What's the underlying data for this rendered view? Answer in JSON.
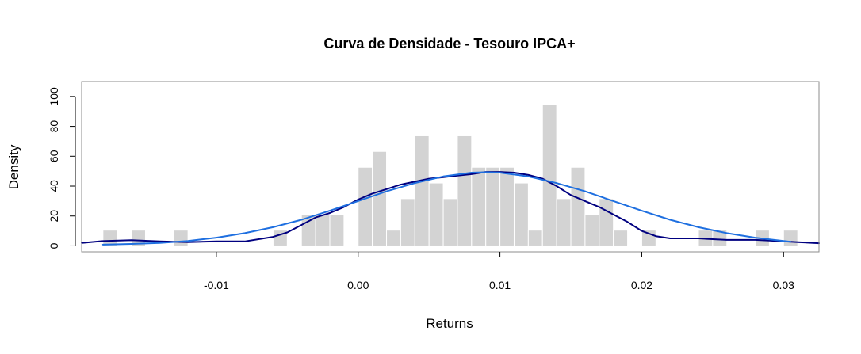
{
  "chart_data": {
    "type": "histogram",
    "title": "Curva de Densidade - Tesouro IPCA+",
    "xlabel": "Returns",
    "ylabel": "Density",
    "xlim": [
      -0.0195,
      0.0325
    ],
    "ylim": [
      -4,
      110
    ],
    "x_ticks": [
      -0.01,
      0.0,
      0.01,
      0.02,
      0.03
    ],
    "x_tick_labels": [
      "-0.01",
      "0.00",
      "0.01",
      "0.02",
      "0.03"
    ],
    "y_ticks": [
      0,
      20,
      40,
      60,
      80,
      100
    ],
    "y_tick_labels": [
      "0",
      "20",
      "40",
      "60",
      "80",
      "100"
    ],
    "bin_width": 0.001,
    "bins": [
      {
        "x0": -0.018,
        "x1": -0.017,
        "density": 10.5
      },
      {
        "x0": -0.016,
        "x1": -0.015,
        "density": 10.5
      },
      {
        "x0": -0.013,
        "x1": -0.012,
        "density": 10.5
      },
      {
        "x0": -0.006,
        "x1": -0.005,
        "density": 10.5
      },
      {
        "x0": -0.004,
        "x1": -0.003,
        "density": 21
      },
      {
        "x0": -0.003,
        "x1": -0.002,
        "density": 21
      },
      {
        "x0": -0.002,
        "x1": -0.001,
        "density": 21
      },
      {
        "x0": 0.0,
        "x1": 0.001,
        "density": 52.6
      },
      {
        "x0": 0.001,
        "x1": 0.002,
        "density": 63.2
      },
      {
        "x0": 0.002,
        "x1": 0.003,
        "density": 10.5
      },
      {
        "x0": 0.003,
        "x1": 0.004,
        "density": 31.6
      },
      {
        "x0": 0.004,
        "x1": 0.005,
        "density": 73.7
      },
      {
        "x0": 0.005,
        "x1": 0.006,
        "density": 42.1
      },
      {
        "x0": 0.006,
        "x1": 0.007,
        "density": 31.6
      },
      {
        "x0": 0.007,
        "x1": 0.008,
        "density": 73.7
      },
      {
        "x0": 0.008,
        "x1": 0.009,
        "density": 52.6
      },
      {
        "x0": 0.009,
        "x1": 0.01,
        "density": 52.6
      },
      {
        "x0": 0.01,
        "x1": 0.011,
        "density": 52.6
      },
      {
        "x0": 0.011,
        "x1": 0.012,
        "density": 42.1
      },
      {
        "x0": 0.012,
        "x1": 0.013,
        "density": 10.5
      },
      {
        "x0": 0.013,
        "x1": 0.014,
        "density": 94.7
      },
      {
        "x0": 0.014,
        "x1": 0.015,
        "density": 31.6
      },
      {
        "x0": 0.015,
        "x1": 0.016,
        "density": 52.6
      },
      {
        "x0": 0.016,
        "x1": 0.017,
        "density": 21
      },
      {
        "x0": 0.017,
        "x1": 0.018,
        "density": 31.6
      },
      {
        "x0": 0.018,
        "x1": 0.019,
        "density": 10.5
      },
      {
        "x0": 0.02,
        "x1": 0.021,
        "density": 10.5
      },
      {
        "x0": 0.024,
        "x1": 0.025,
        "density": 10.5
      },
      {
        "x0": 0.025,
        "x1": 0.026,
        "density": 10.5
      },
      {
        "x0": 0.028,
        "x1": 0.029,
        "density": 10.5
      },
      {
        "x0": 0.03,
        "x1": 0.031,
        "density": 10.5
      }
    ],
    "series": [
      {
        "type": "line",
        "color": "#000080",
        "points": [
          [
            -0.0195,
            2
          ],
          [
            -0.018,
            3.2
          ],
          [
            -0.016,
            3.8
          ],
          [
            -0.014,
            3
          ],
          [
            -0.012,
            2.5
          ],
          [
            -0.01,
            3
          ],
          [
            -0.008,
            3
          ],
          [
            -0.006,
            6
          ],
          [
            -0.005,
            9
          ],
          [
            -0.004,
            14
          ],
          [
            -0.003,
            19
          ],
          [
            -0.002,
            22
          ],
          [
            -0.001,
            26
          ],
          [
            0.0,
            31
          ],
          [
            0.001,
            35
          ],
          [
            0.002,
            38
          ],
          [
            0.003,
            41
          ],
          [
            0.004,
            43
          ],
          [
            0.005,
            45
          ],
          [
            0.006,
            46
          ],
          [
            0.007,
            47
          ],
          [
            0.008,
            48
          ],
          [
            0.009,
            49.5
          ],
          [
            0.01,
            49.5
          ],
          [
            0.011,
            49
          ],
          [
            0.012,
            47.5
          ],
          [
            0.013,
            45
          ],
          [
            0.014,
            40
          ],
          [
            0.015,
            34
          ],
          [
            0.016,
            30
          ],
          [
            0.017,
            26
          ],
          [
            0.018,
            21
          ],
          [
            0.019,
            16
          ],
          [
            0.02,
            10
          ],
          [
            0.021,
            6.5
          ],
          [
            0.022,
            5
          ],
          [
            0.023,
            5
          ],
          [
            0.024,
            5
          ],
          [
            0.025,
            4.5
          ],
          [
            0.026,
            4
          ],
          [
            0.027,
            4
          ],
          [
            0.028,
            4
          ],
          [
            0.029,
            3.6
          ],
          [
            0.03,
            3
          ],
          [
            0.031,
            2.5
          ],
          [
            0.0325,
            1.8
          ]
        ]
      },
      {
        "type": "line",
        "color": "#1E6FE0",
        "points": [
          [
            -0.018,
            0.8
          ],
          [
            -0.016,
            1.3
          ],
          [
            -0.014,
            2
          ],
          [
            -0.012,
            3.3
          ],
          [
            -0.01,
            5.5
          ],
          [
            -0.008,
            8.5
          ],
          [
            -0.006,
            12.5
          ],
          [
            -0.004,
            17.5
          ],
          [
            -0.002,
            23.5
          ],
          [
            0.0,
            30
          ],
          [
            0.002,
            36.5
          ],
          [
            0.004,
            42
          ],
          [
            0.006,
            46.5
          ],
          [
            0.008,
            49
          ],
          [
            0.009,
            49.3
          ],
          [
            0.01,
            49
          ],
          [
            0.012,
            46.5
          ],
          [
            0.014,
            42
          ],
          [
            0.016,
            36.5
          ],
          [
            0.018,
            30
          ],
          [
            0.02,
            23.5
          ],
          [
            0.022,
            17.5
          ],
          [
            0.024,
            12.5
          ],
          [
            0.026,
            8.5
          ],
          [
            0.028,
            5.5
          ],
          [
            0.03,
            3.3
          ],
          [
            0.0305,
            2.8
          ]
        ]
      }
    ],
    "bar_color": "#D3D3D3",
    "grid": false
  }
}
